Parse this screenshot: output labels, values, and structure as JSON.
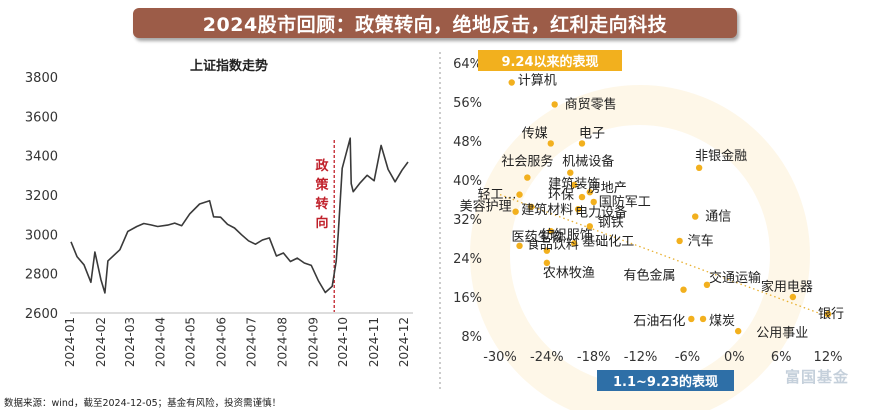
{
  "title": "2024股市回顾：政策转向，绝地反击，红利走向科技",
  "footnote": "数据来源：wind，截至2024-12-05；基金有风险，投资需谨慎！",
  "watermark": "富国基金",
  "colors": {
    "banner": "#9c5c48",
    "line": "#3a3a3a",
    "annotation": "#c0202a",
    "dot": "#f2b01e",
    "trend": "#e8b030",
    "badge_top": "#f2b01e",
    "badge_bottom": "#2e6fa7"
  },
  "chart_data": [
    {
      "type": "line",
      "title": "上证指数走势",
      "ylim": [
        2600,
        3800
      ],
      "y_ticks": [
        "2600",
        "2800",
        "3000",
        "3200",
        "3400",
        "3600",
        "3800"
      ],
      "x_ticks": [
        "2024-01",
        "2024-02",
        "2024-03",
        "2024-04",
        "2024-05",
        "2024-06",
        "2024-07",
        "2024-08",
        "2024-09",
        "2024-10",
        "2024-11",
        "2024-12"
      ],
      "annotation": "政策转向",
      "series": [
        {
          "x": [
            "2024-01-02",
            "2024-01-08",
            "2024-01-15",
            "2024-01-22",
            "2024-01-26",
            "2024-02-01",
            "2024-02-05",
            "2024-02-08",
            "2024-02-20",
            "2024-02-28",
            "2024-03-08",
            "2024-03-15",
            "2024-03-22",
            "2024-03-29",
            "2024-04-08",
            "2024-04-15",
            "2024-04-22",
            "2024-04-30",
            "2024-05-10",
            "2024-05-20",
            "2024-05-24",
            "2024-05-31",
            "2024-06-07",
            "2024-06-14",
            "2024-06-21",
            "2024-06-28",
            "2024-07-05",
            "2024-07-12",
            "2024-07-19",
            "2024-07-26",
            "2024-08-02",
            "2024-08-09",
            "2024-08-16",
            "2024-08-23",
            "2024-08-30",
            "2024-09-06",
            "2024-09-13",
            "2024-09-20",
            "2024-09-24",
            "2024-09-26",
            "2024-09-30",
            "2024-10-08",
            "2024-10-09",
            "2024-10-11",
            "2024-10-18",
            "2024-10-25",
            "2024-11-01",
            "2024-11-08",
            "2024-11-15",
            "2024-11-22",
            "2024-11-29",
            "2024-12-05"
          ],
          "y": [
            2962,
            2887,
            2845,
            2756,
            2910,
            2770,
            2702,
            2865,
            2922,
            3015,
            3040,
            3055,
            3048,
            3040,
            3047,
            3057,
            3044,
            3104,
            3154,
            3171,
            3089,
            3087,
            3051,
            3032,
            2998,
            2967,
            2950,
            2971,
            2982,
            2890,
            2905,
            2862,
            2879,
            2854,
            2842,
            2765,
            2704,
            2736,
            2863,
            3000,
            3336,
            3489,
            3258,
            3217,
            3262,
            3300,
            3272,
            3452,
            3330,
            3267,
            3326,
            3368
          ]
        }
      ]
    },
    {
      "type": "scatter",
      "xlabel": "1.1~9.23的表现",
      "ylabel": "9.24以来的表现",
      "xlim": [
        -30,
        12
      ],
      "ylim": [
        8,
        64
      ],
      "x_ticks": [
        "-30%",
        "-24%",
        "-18%",
        "-12%",
        "-6%",
        "0%",
        "6%",
        "12%"
      ],
      "y_ticks": [
        "8%",
        "16%",
        "24%",
        "32%",
        "40%",
        "48%",
        "56%",
        "64%"
      ],
      "trend": {
        "x": [
          -30,
          12
        ],
        "y": [
          37,
          12
        ]
      },
      "points": [
        {
          "name": "计算机",
          "x": -28.5,
          "y": 60.0
        },
        {
          "name": "商贸零售",
          "x": -23.0,
          "y": 55.5
        },
        {
          "name": "传媒",
          "x": -23.5,
          "y": 47.5
        },
        {
          "name": "电子",
          "x": -19.5,
          "y": 47.5
        },
        {
          "name": "非银金融",
          "x": -4.5,
          "y": 42.5
        },
        {
          "name": "社会服务",
          "x": -26.5,
          "y": 40.5
        },
        {
          "name": "机械设备",
          "x": -21.0,
          "y": 41.5
        },
        {
          "name": "建筑装饰",
          "x": -20.5,
          "y": 39.0
        },
        {
          "name": "房地产",
          "x": -18.5,
          "y": 37.5
        },
        {
          "name": "轻工…",
          "x": -27.5,
          "y": 37.0
        },
        {
          "name": "环保",
          "x": -19.5,
          "y": 36.5
        },
        {
          "name": "国防军工",
          "x": -18.0,
          "y": 35.5
        },
        {
          "name": "美容护理",
          "x": -28.0,
          "y": 33.5
        },
        {
          "name": "建筑材料",
          "x": -26.0,
          "y": 34.5
        },
        {
          "name": "电力设备",
          "x": -20.0,
          "y": 34.0
        },
        {
          "name": "通信",
          "x": -5.0,
          "y": 32.5
        },
        {
          "name": "钢铁",
          "x": -18.5,
          "y": 30.5
        },
        {
          "name": "纺织服饰",
          "x": -23.5,
          "y": 29.5
        },
        {
          "name": "医药生物",
          "x": -27.5,
          "y": 26.5
        },
        {
          "name": "基础化工",
          "x": -20.5,
          "y": 27.0
        },
        {
          "name": "汽车",
          "x": -7.0,
          "y": 27.5
        },
        {
          "name": "食品饮料",
          "x": -24.0,
          "y": 25.5
        },
        {
          "name": "农林牧渔",
          "x": -24.0,
          "y": 23.0
        },
        {
          "name": "有色金属",
          "x": -6.5,
          "y": 17.5
        },
        {
          "name": "交通运输",
          "x": -3.5,
          "y": 18.5
        },
        {
          "name": "家用电器",
          "x": 7.5,
          "y": 16.0
        },
        {
          "name": "银行",
          "x": 12.0,
          "y": 12.5
        },
        {
          "name": "石油石化",
          "x": -5.5,
          "y": 11.5
        },
        {
          "name": "煤炭",
          "x": -4.0,
          "y": 11.5
        },
        {
          "name": "公用事业",
          "x": 0.5,
          "y": 9.0
        }
      ]
    }
  ]
}
